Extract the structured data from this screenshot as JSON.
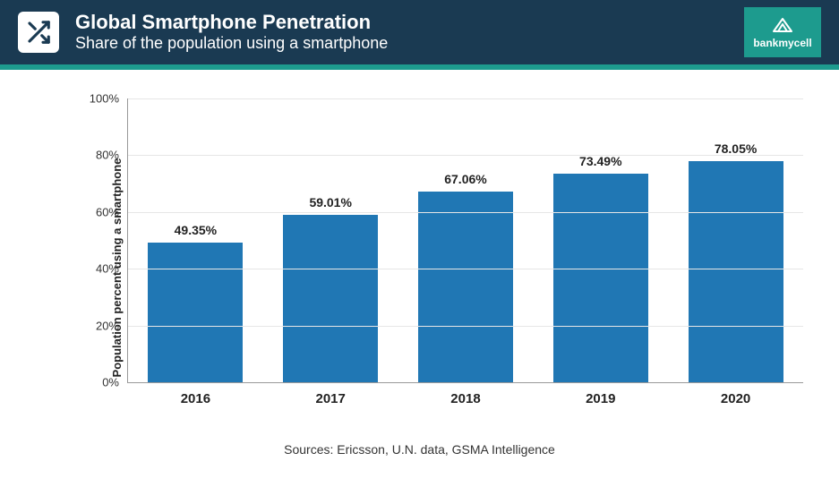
{
  "header": {
    "title": "Global Smartphone Penetration",
    "subtitle": "Share of the population using a smartphone",
    "bg_color": "#1a3a52",
    "accent_color": "#1d9b8e",
    "logo_text": "bankmycell"
  },
  "chart": {
    "type": "bar",
    "y_axis_label": "Population percent using a smartphone",
    "categories": [
      "2016",
      "2017",
      "2018",
      "2019",
      "2020"
    ],
    "values": [
      49.35,
      59.01,
      67.06,
      73.49,
      78.05
    ],
    "value_labels": [
      "49.35%",
      "59.01%",
      "67.06%",
      "73.49%",
      "78.05%"
    ],
    "bar_color": "#2077b4",
    "ylim": [
      0,
      100
    ],
    "ytick_step": 20,
    "ytick_labels": [
      "0%",
      "20%",
      "40%",
      "60%",
      "80%",
      "100%"
    ],
    "grid_color": "#e6e6e6",
    "axis_color": "#999999",
    "background_color": "#ffffff",
    "value_label_fontsize": 14,
    "category_fontsize": 15,
    "y_label_fontsize": 13,
    "bar_width_ratio": 0.78
  },
  "sources": "Sources: Ericsson, U.N. data, GSMA Intelligence"
}
